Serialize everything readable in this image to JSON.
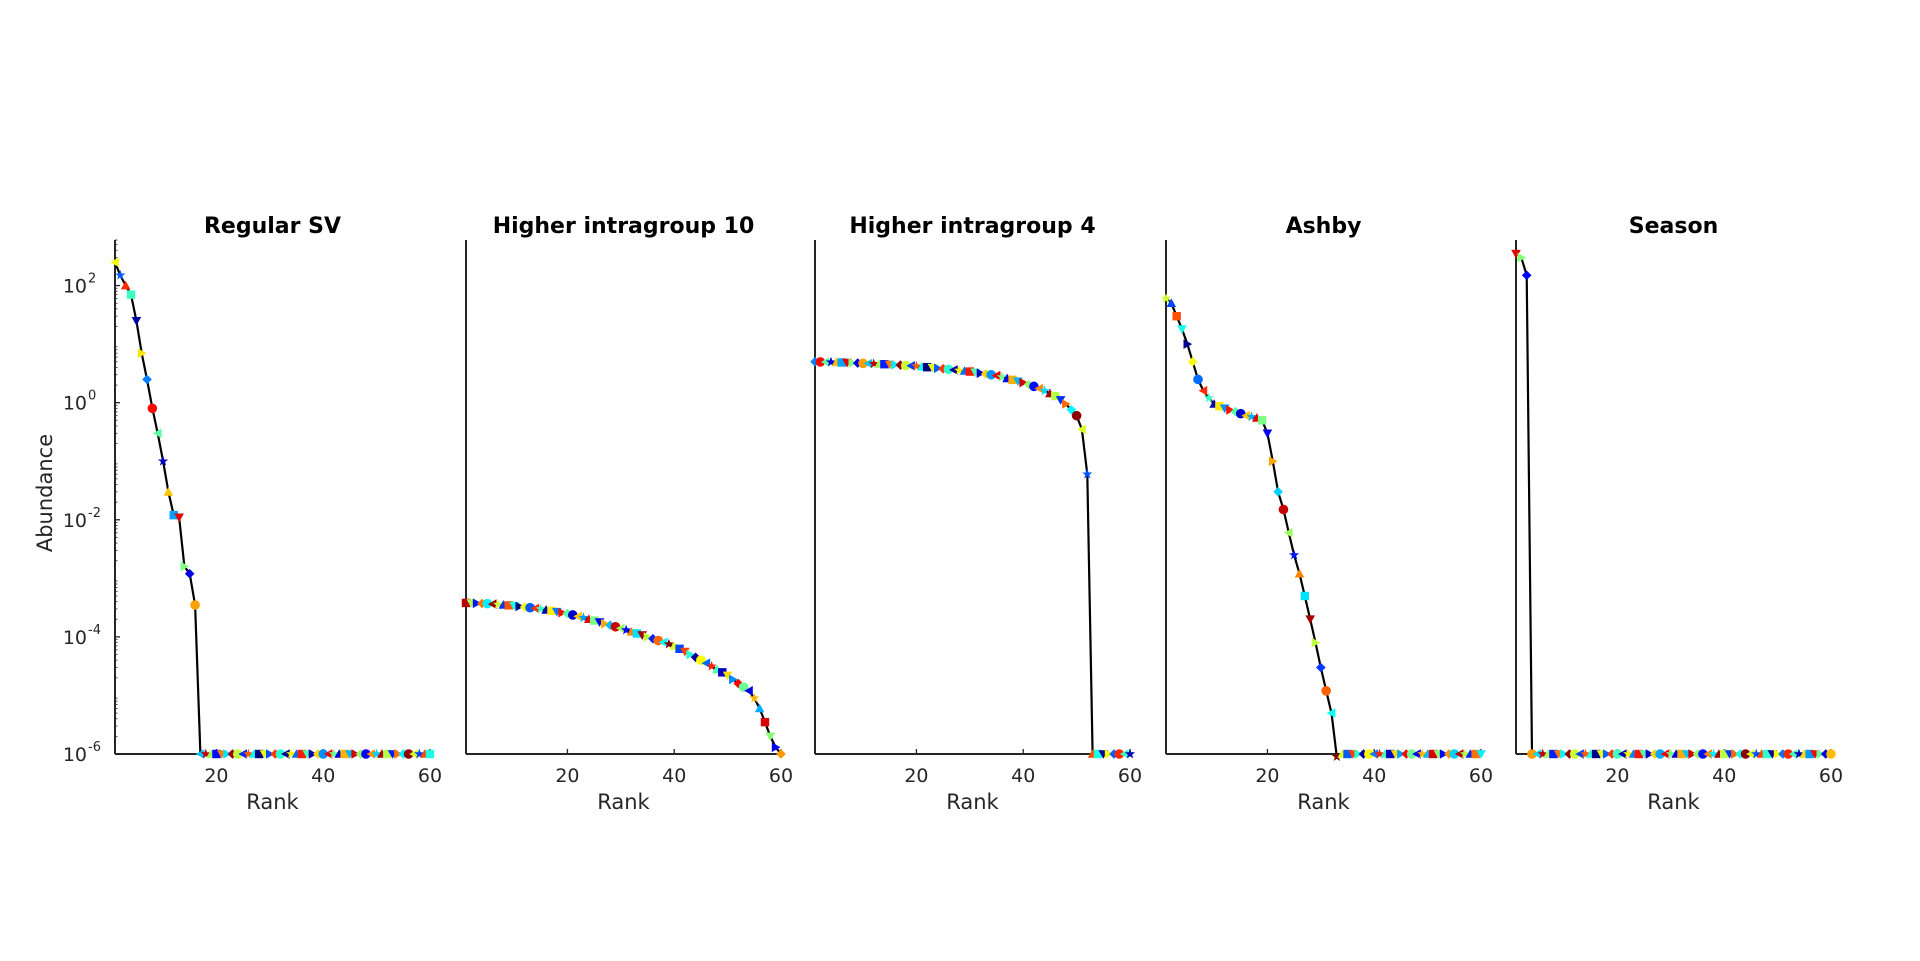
{
  "chart_data": [
    {
      "type": "line",
      "title": "Regular SV",
      "xlabel": "Rank",
      "ylabel": "Abundance",
      "yscale": "log",
      "xlim": [
        1,
        60
      ],
      "ylim": [
        1e-06,
        600
      ],
      "xticks": [
        "20",
        "40",
        "60"
      ],
      "yticks": [
        {
          "base": "10",
          "exp": "2"
        },
        {
          "base": "10",
          "exp": "0"
        },
        {
          "base": "10",
          "exp": "-2"
        },
        {
          "base": "10",
          "exp": "-4"
        },
        {
          "base": "10",
          "exp": "-6"
        }
      ],
      "x": [
        1,
        2,
        3,
        4,
        5,
        6,
        7,
        8,
        9,
        10,
        11,
        12,
        13,
        14,
        15,
        16,
        17
      ],
      "y": [
        250,
        150,
        100,
        70,
        25,
        7,
        2.5,
        0.8,
        0.3,
        0.1,
        0.03,
        0.012,
        0.011,
        0.0016,
        0.0012,
        0.00035,
        1e-06
      ],
      "floor_from_rank": 18,
      "floor_value": 1e-06
    },
    {
      "type": "line",
      "title": "Higher intragroup 10",
      "xlabel": "Rank",
      "yscale": "log",
      "xlim": [
        1,
        60
      ],
      "ylim": [
        1e-06,
        600
      ],
      "xticks": [
        "20",
        "40",
        "60"
      ],
      "x": [
        1,
        5,
        10,
        15,
        20,
        25,
        30,
        35,
        40,
        45,
        50,
        52,
        54,
        55,
        56,
        57,
        58,
        59,
        60
      ],
      "y": [
        0.00038,
        0.00037,
        0.00034,
        0.0003,
        0.00025,
        0.00019,
        0.00014,
        0.0001,
        7e-05,
        4e-05,
        2.2e-05,
        1.6e-05,
        1.2e-05,
        9e-06,
        6e-06,
        3.5e-06,
        2e-06,
        1.3e-06,
        1e-06
      ],
      "floor_from_rank": null,
      "floor_value": 1e-06
    },
    {
      "type": "line",
      "title": "Higher intragroup 4",
      "xlabel": "Rank",
      "yscale": "log",
      "xlim": [
        1,
        60
      ],
      "ylim": [
        1e-06,
        600
      ],
      "xticks": [
        "20",
        "40",
        "60"
      ],
      "x": [
        1,
        5,
        10,
        15,
        20,
        25,
        30,
        35,
        40,
        42,
        44,
        46,
        48,
        50,
        51,
        52,
        53
      ],
      "y": [
        5,
        4.9,
        4.7,
        4.5,
        4.2,
        3.8,
        3.4,
        2.9,
        2.2,
        1.9,
        1.6,
        1.3,
        0.95,
        0.6,
        0.35,
        0.06,
        1e-06
      ],
      "floor_from_rank": 54,
      "floor_value": 1e-06
    },
    {
      "type": "line",
      "title": "Ashby",
      "xlabel": "Rank",
      "yscale": "log",
      "xlim": [
        1,
        60
      ],
      "ylim": [
        1e-06,
        600
      ],
      "xticks": [
        "20",
        "40",
        "60"
      ],
      "x": [
        1,
        2,
        3,
        4,
        5,
        6,
        7,
        8,
        9,
        10,
        12,
        14,
        16,
        18,
        19,
        20,
        21,
        22,
        23,
        24,
        25,
        26,
        27,
        28,
        29,
        30,
        31,
        32,
        33,
        34
      ],
      "y": [
        60,
        50,
        30,
        18,
        10,
        5,
        2.5,
        1.6,
        1.2,
        0.95,
        0.8,
        0.7,
        0.6,
        0.55,
        0.5,
        0.3,
        0.1,
        0.03,
        0.015,
        0.006,
        0.0025,
        0.0012,
        0.0005,
        0.0002,
        8e-05,
        3e-05,
        1.2e-05,
        5e-06,
        9e-07,
        1e-06
      ],
      "floor_from_rank": 35,
      "floor_value": 1e-06
    },
    {
      "type": "line",
      "title": "Season",
      "xlabel": "Rank",
      "yscale": "log",
      "xlim": [
        1,
        60
      ],
      "ylim": [
        1e-06,
        600
      ],
      "xticks": [
        "20",
        "40",
        "60"
      ],
      "x": [
        1,
        2,
        3,
        4
      ],
      "y": [
        350,
        300,
        150,
        1e-06
      ],
      "floor_from_rank": 5,
      "floor_value": 1e-06
    }
  ]
}
